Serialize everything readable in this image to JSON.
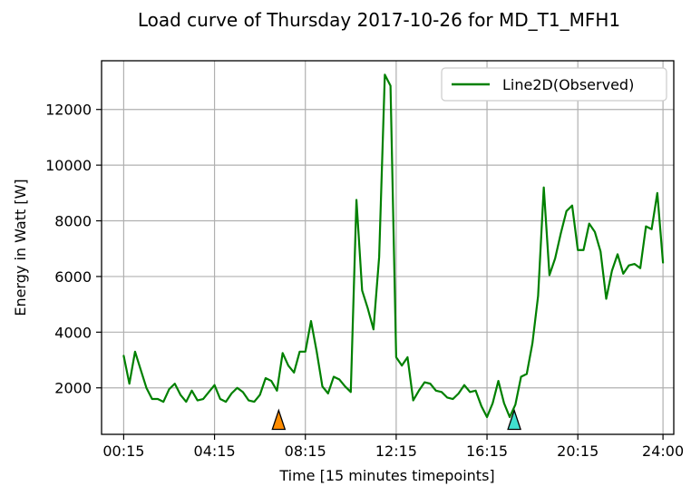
{
  "chart_data": {
    "type": "line",
    "title": "Load curve of Thursday 2017-10-26 for MD_T1_MFH1",
    "xlabel": "Time [15 minutes timepoints]",
    "ylabel": "Energy in Watt [W]",
    "xlim": [
      -2.9,
      97.9
    ],
    "ylim": [
      330,
      13750
    ],
    "grid": true,
    "legend_position": "upper-right",
    "x_ticks": [
      {
        "x": 1,
        "label": "00:15"
      },
      {
        "x": 17,
        "label": "04:15"
      },
      {
        "x": 33,
        "label": "08:15"
      },
      {
        "x": 49,
        "label": "12:15"
      },
      {
        "x": 65,
        "label": "16:15"
      },
      {
        "x": 81,
        "label": "20:15"
      },
      {
        "x": 96,
        "label": "24:00"
      }
    ],
    "y_ticks": [
      {
        "y": 2000,
        "label": "2000"
      },
      {
        "y": 4000,
        "label": "4000"
      },
      {
        "y": 6000,
        "label": "6000"
      },
      {
        "y": 8000,
        "label": "8000"
      },
      {
        "y": 10000,
        "label": "10000"
      },
      {
        "y": 12000,
        "label": "12000"
      }
    ],
    "series": [
      {
        "name": "Line2D(Observed)",
        "color": "#008000",
        "x": [
          1,
          2,
          3,
          4,
          5,
          6,
          7,
          8,
          9,
          10,
          11,
          12,
          13,
          14,
          15,
          16,
          17,
          18,
          19,
          20,
          21,
          22,
          23,
          24,
          25,
          26,
          27,
          28,
          29,
          30,
          31,
          32,
          33,
          34,
          35,
          36,
          37,
          38,
          39,
          40,
          41,
          42,
          43,
          44,
          45,
          46,
          47,
          48,
          49,
          50,
          51,
          52,
          53,
          54,
          55,
          56,
          57,
          58,
          59,
          60,
          61,
          62,
          63,
          64,
          65,
          66,
          67,
          68,
          69,
          70,
          71,
          72,
          73,
          74,
          75,
          76,
          77,
          78,
          79,
          80,
          81,
          82,
          83,
          84,
          85,
          86,
          87,
          88,
          89,
          90,
          91,
          92,
          93,
          94,
          95,
          96
        ],
        "values": [
          3150,
          2150,
          3300,
          2650,
          2000,
          1600,
          1600,
          1500,
          1950,
          2150,
          1750,
          1500,
          1900,
          1550,
          1600,
          1850,
          2100,
          1600,
          1500,
          1800,
          2000,
          1850,
          1550,
          1500,
          1750,
          2350,
          2250,
          1900,
          3250,
          2800,
          2550,
          3300,
          3300,
          4400,
          3300,
          2050,
          1800,
          2400,
          2300,
          2050,
          1850,
          8750,
          5500,
          4850,
          4100,
          6700,
          13250,
          12850,
          3100,
          2800,
          3100,
          1550,
          1900,
          2200,
          2150,
          1900,
          1850,
          1650,
          1600,
          1800,
          2100,
          1850,
          1900,
          1350,
          950,
          1450,
          2250,
          1450,
          950,
          1400,
          2400,
          2500,
          3600,
          5300,
          9200,
          6050,
          6650,
          7550,
          8350,
          8550,
          6950,
          6950,
          7900,
          7600,
          6900,
          5200,
          6200,
          6800,
          6100,
          6400,
          6450,
          6300,
          7800,
          7700,
          9000,
          6500
        ]
      }
    ],
    "markers": [
      {
        "x": 28.3,
        "y": 850,
        "color": "#ff8c00",
        "shape": "triangle-up"
      },
      {
        "x": 69.8,
        "y": 850,
        "color": "#40e0d0",
        "shape": "triangle-up"
      }
    ]
  }
}
